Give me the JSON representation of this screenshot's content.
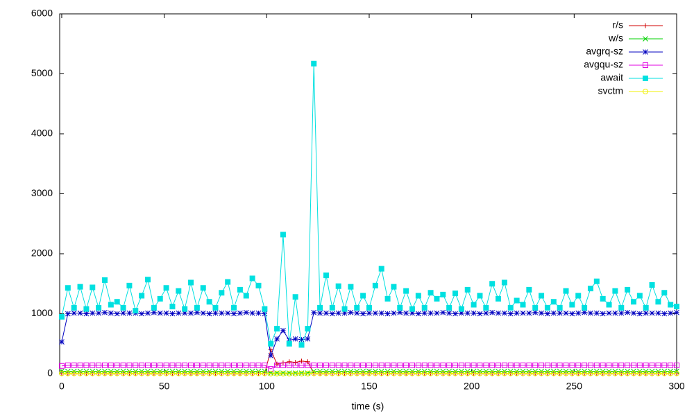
{
  "chart_data": {
    "type": "line",
    "x_label": "time (s)",
    "xlim": [
      -1,
      300
    ],
    "xticks": [
      0,
      50,
      100,
      150,
      200,
      250,
      300
    ],
    "ylim": [
      0,
      6000
    ],
    "yticks": [
      0,
      1000,
      2000,
      3000,
      4000,
      5000,
      6000
    ],
    "grid": false,
    "legend": "top-right",
    "x": [
      0,
      3,
      6,
      9,
      12,
      15,
      18,
      21,
      24,
      27,
      30,
      33,
      36,
      39,
      42,
      45,
      48,
      51,
      54,
      57,
      60,
      63,
      66,
      69,
      72,
      75,
      78,
      81,
      84,
      87,
      90,
      93,
      96,
      99,
      102,
      105,
      108,
      111,
      114,
      117,
      120,
      123,
      126,
      129,
      132,
      135,
      138,
      141,
      144,
      147,
      150,
      153,
      156,
      159,
      162,
      165,
      168,
      171,
      174,
      177,
      180,
      183,
      186,
      189,
      192,
      195,
      198,
      201,
      204,
      207,
      210,
      213,
      216,
      219,
      222,
      225,
      228,
      231,
      234,
      237,
      240,
      243,
      246,
      249,
      252,
      255,
      258,
      261,
      264,
      267,
      270,
      273,
      276,
      279,
      282,
      285,
      288,
      291,
      294,
      297,
      300
    ],
    "series": [
      {
        "name": "r/s",
        "color": "#d00000",
        "marker": "plus",
        "values": [
          0,
          0,
          0,
          0,
          0,
          0,
          0,
          0,
          0,
          0,
          0,
          0,
          0,
          0,
          0,
          0,
          0,
          0,
          0,
          0,
          0,
          0,
          0,
          0,
          0,
          0,
          0,
          0,
          0,
          0,
          0,
          0,
          0,
          0,
          400,
          160,
          180,
          200,
          190,
          210,
          200,
          0,
          0,
          0,
          0,
          0,
          0,
          0,
          0,
          0,
          0,
          0,
          0,
          0,
          0,
          0,
          0,
          0,
          0,
          0,
          0,
          0,
          0,
          0,
          0,
          0,
          0,
          0,
          0,
          0,
          0,
          0,
          0,
          0,
          0,
          0,
          0,
          0,
          0,
          0,
          0,
          0,
          0,
          0,
          0,
          0,
          0,
          0,
          0,
          0,
          0,
          0,
          0,
          0,
          0,
          0,
          0,
          0,
          0,
          0,
          0
        ]
      },
      {
        "name": "w/s",
        "color": "#00d000",
        "marker": "cross",
        "values": [
          40,
          40,
          40,
          40,
          40,
          40,
          40,
          40,
          40,
          40,
          40,
          40,
          40,
          40,
          40,
          40,
          40,
          40,
          40,
          40,
          40,
          40,
          40,
          40,
          40,
          40,
          40,
          40,
          40,
          40,
          40,
          40,
          40,
          40,
          10,
          10,
          10,
          10,
          10,
          10,
          10,
          40,
          40,
          40,
          40,
          40,
          40,
          40,
          40,
          40,
          40,
          40,
          40,
          40,
          40,
          40,
          40,
          40,
          40,
          40,
          40,
          40,
          40,
          40,
          40,
          40,
          40,
          40,
          40,
          40,
          40,
          40,
          40,
          40,
          40,
          40,
          40,
          40,
          40,
          40,
          40,
          40,
          40,
          40,
          40,
          40,
          40,
          40,
          40,
          40,
          40,
          40,
          40,
          40,
          40,
          40,
          40,
          40,
          40,
          40,
          40
        ]
      },
      {
        "name": "avgrq-sz",
        "color": "#0000c0",
        "marker": "star",
        "values": [
          530,
          1000,
          1010,
          1010,
          1000,
          1010,
          1010,
          1020,
          1010,
          1000,
          1010,
          1010,
          1010,
          1000,
          1010,
          1020,
          1010,
          1010,
          1000,
          1010,
          1010,
          1010,
          1020,
          1010,
          1000,
          1010,
          1010,
          1010,
          1000,
          1010,
          1020,
          1010,
          1010,
          1000,
          300,
          580,
          720,
          560,
          580,
          570,
          580,
          1020,
          1010,
          1010,
          1000,
          1010,
          1010,
          1020,
          1010,
          1000,
          1010,
          1010,
          1010,
          1000,
          1010,
          1020,
          1010,
          1010,
          1000,
          1010,
          1010,
          1010,
          1020,
          1010,
          1000,
          1010,
          1010,
          1010,
          1000,
          1010,
          1020,
          1010,
          1010,
          1000,
          1010,
          1010,
          1010,
          1020,
          1010,
          1000,
          1010,
          1010,
          1010,
          1000,
          1010,
          1020,
          1010,
          1010,
          1000,
          1010,
          1010,
          1010,
          1020,
          1010,
          1000,
          1010,
          1010,
          1010,
          1000,
          1010,
          1020
        ]
      },
      {
        "name": "avgqu-sz",
        "color": "#e000e0",
        "marker": "box",
        "values": [
          130,
          140,
          140,
          140,
          140,
          140,
          140,
          140,
          140,
          140,
          140,
          140,
          140,
          140,
          140,
          140,
          140,
          140,
          140,
          140,
          140,
          140,
          140,
          140,
          140,
          140,
          140,
          140,
          140,
          140,
          140,
          140,
          140,
          140,
          80,
          140,
          140,
          140,
          140,
          140,
          140,
          140,
          140,
          140,
          140,
          140,
          140,
          140,
          140,
          140,
          140,
          140,
          140,
          140,
          140,
          140,
          140,
          140,
          140,
          140,
          140,
          140,
          140,
          140,
          140,
          140,
          140,
          140,
          140,
          140,
          140,
          140,
          140,
          140,
          140,
          140,
          140,
          140,
          140,
          140,
          140,
          140,
          140,
          140,
          140,
          140,
          140,
          140,
          140,
          140,
          140,
          140,
          140,
          140,
          140,
          140,
          140,
          140,
          140,
          140,
          140
        ]
      },
      {
        "name": "await",
        "color": "#00e0e0",
        "marker": "filled-box",
        "values": [
          950,
          1430,
          1100,
          1450,
          1080,
          1440,
          1100,
          1560,
          1150,
          1200,
          1100,
          1470,
          1050,
          1300,
          1570,
          1100,
          1250,
          1430,
          1120,
          1380,
          1080,
          1520,
          1100,
          1430,
          1200,
          1100,
          1350,
          1530,
          1100,
          1400,
          1300,
          1590,
          1470,
          1080,
          500,
          750,
          2320,
          500,
          1280,
          480,
          750,
          5170,
          1100,
          1640,
          1100,
          1460,
          1080,
          1450,
          1100,
          1300,
          1100,
          1470,
          1750,
          1250,
          1450,
          1100,
          1380,
          1080,
          1300,
          1100,
          1350,
          1250,
          1320,
          1100,
          1340,
          1080,
          1400,
          1150,
          1300,
          1100,
          1500,
          1250,
          1520,
          1100,
          1220,
          1150,
          1400,
          1100,
          1300,
          1100,
          1200,
          1100,
          1380,
          1150,
          1300,
          1100,
          1420,
          1540,
          1250,
          1150,
          1380,
          1100,
          1400,
          1200,
          1300,
          1100,
          1480,
          1200,
          1350,
          1150,
          1120
        ]
      },
      {
        "name": "svctm",
        "color": "#f0f000",
        "marker": "circle",
        "values": [
          5,
          5,
          5,
          5,
          5,
          5,
          5,
          5,
          5,
          5,
          5,
          5,
          5,
          5,
          5,
          5,
          5,
          5,
          5,
          5,
          5,
          5,
          5,
          5,
          5,
          5,
          5,
          5,
          5,
          5,
          5,
          5,
          5,
          5,
          3,
          3,
          3,
          3,
          3,
          3,
          3,
          5,
          5,
          5,
          5,
          5,
          5,
          5,
          5,
          5,
          5,
          5,
          5,
          5,
          5,
          5,
          5,
          5,
          5,
          5,
          5,
          5,
          5,
          5,
          5,
          5,
          5,
          5,
          5,
          5,
          5,
          5,
          5,
          5,
          5,
          5,
          5,
          5,
          5,
          5,
          5,
          5,
          5,
          5,
          5,
          5,
          5,
          5,
          5,
          5,
          5,
          5,
          5,
          5,
          5,
          5,
          5,
          5,
          5,
          5,
          5
        ]
      }
    ]
  }
}
